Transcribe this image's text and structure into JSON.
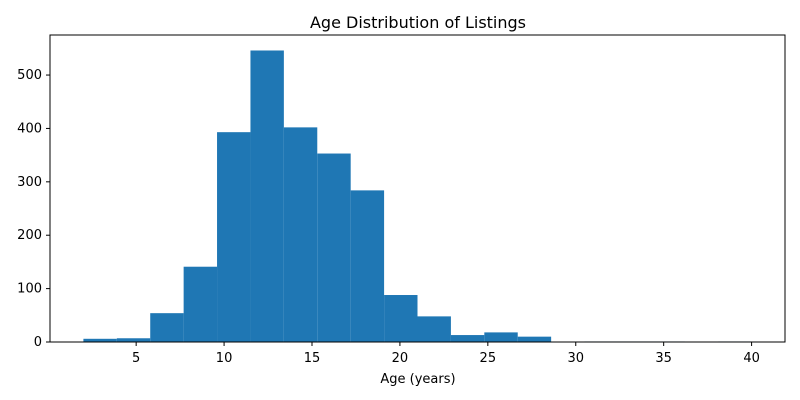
{
  "chart_data": {
    "type": "bar",
    "title": "Age Distribution of Listings",
    "xlabel": "Age (years)",
    "ylabel": "",
    "bar_color": "#1f77b4",
    "xlim": [
      0.1,
      41.9
    ],
    "ylim": [
      0,
      575
    ],
    "xticks": [
      5,
      10,
      15,
      20,
      25,
      30,
      35,
      40
    ],
    "yticks": [
      0,
      100,
      200,
      300,
      400,
      500
    ],
    "bins": [
      {
        "x0": 2.0,
        "x1": 3.9,
        "value": 6
      },
      {
        "x0": 3.9,
        "x1": 5.8,
        "value": 7
      },
      {
        "x0": 5.8,
        "x1": 7.7,
        "value": 54
      },
      {
        "x0": 7.7,
        "x1": 9.6,
        "value": 141
      },
      {
        "x0": 9.6,
        "x1": 11.5,
        "value": 393
      },
      {
        "x0": 11.5,
        "x1": 13.4,
        "value": 546
      },
      {
        "x0": 13.4,
        "x1": 15.3,
        "value": 402
      },
      {
        "x0": 15.3,
        "x1": 17.2,
        "value": 353
      },
      {
        "x0": 17.2,
        "x1": 19.1,
        "value": 284
      },
      {
        "x0": 19.1,
        "x1": 21.0,
        "value": 88
      },
      {
        "x0": 21.0,
        "x1": 22.9,
        "value": 48
      },
      {
        "x0": 22.9,
        "x1": 24.8,
        "value": 13
      },
      {
        "x0": 24.8,
        "x1": 26.7,
        "value": 18
      },
      {
        "x0": 26.7,
        "x1": 28.6,
        "value": 10
      },
      {
        "x0": 28.6,
        "x1": 30.5,
        "value": 0
      },
      {
        "x0": 30.5,
        "x1": 32.4,
        "value": 1
      },
      {
        "x0": 32.4,
        "x1": 34.3,
        "value": 1
      },
      {
        "x0": 34.3,
        "x1": 36.2,
        "value": 1
      },
      {
        "x0": 36.2,
        "x1": 38.1,
        "value": 0
      },
      {
        "x0": 38.1,
        "x1": 40.0,
        "value": 1
      }
    ]
  }
}
